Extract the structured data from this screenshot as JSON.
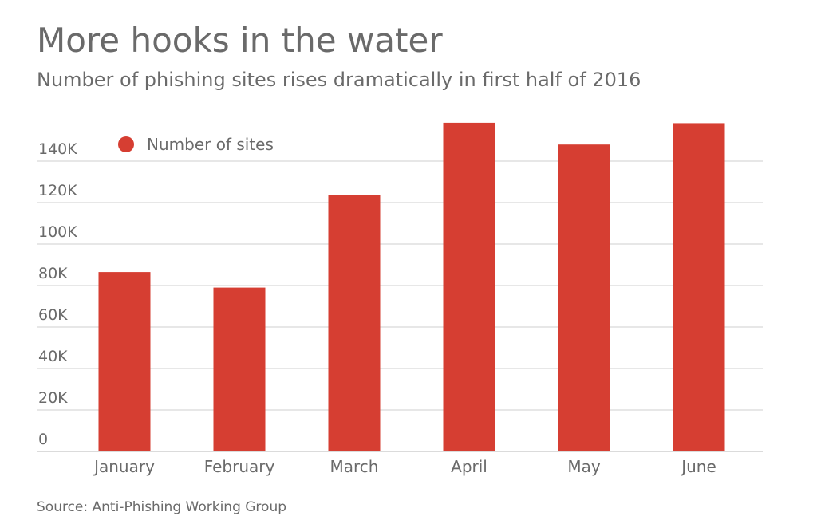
{
  "header": {
    "title": "More hooks in the water",
    "subtitle": "Number of phishing sites rises dramatically in first half of 2016"
  },
  "footer": {
    "source": "Source: Anti-Phishing Working Group"
  },
  "chart_data": {
    "type": "bar",
    "title": "More hooks in the water",
    "subtitle": "Number of phishing sites rises dramatically in first half of 2016",
    "categories": [
      "January",
      "February",
      "March",
      "April",
      "May",
      "June"
    ],
    "series": [
      {
        "name": "Number of sites",
        "color": "#d63e32",
        "values": [
          86500,
          79000,
          123500,
          158500,
          148000,
          158300
        ]
      }
    ],
    "y_ticks": [
      0,
      20000,
      40000,
      60000,
      80000,
      100000,
      120000,
      140000
    ],
    "y_tick_labels": [
      "0",
      "20K",
      "40K",
      "60K",
      "80K",
      "100K",
      "120K",
      "140K"
    ],
    "ylim": [
      0,
      160000
    ],
    "xlabel": "",
    "ylabel": "",
    "grid": true,
    "legend_position": "top-left",
    "colors": {
      "bar": "#d63e32",
      "gridline": "#cfcfcf",
      "text": "#6a6a6a"
    }
  }
}
